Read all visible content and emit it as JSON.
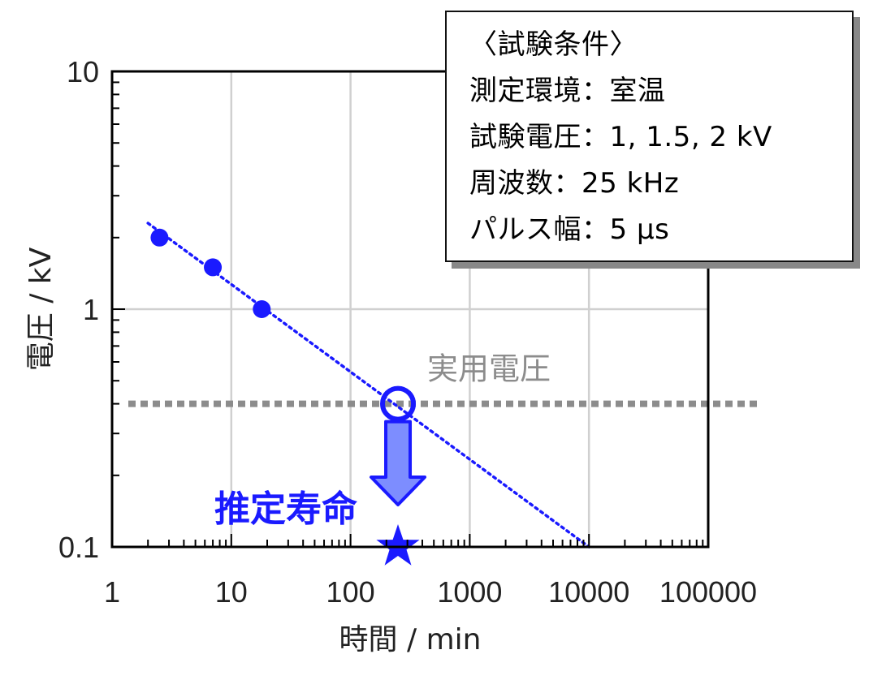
{
  "chart_data": {
    "type": "scatter",
    "xlabel": "時間 / min",
    "ylabel": "電圧 / kV",
    "x_scale": "log",
    "y_scale": "log",
    "xlim": [
      1,
      100000
    ],
    "ylim": [
      0.1,
      10
    ],
    "x_ticks": [
      "1",
      "10",
      "100",
      "1000",
      "10000",
      "100000"
    ],
    "y_ticks": [
      "0.1",
      "1",
      "10"
    ],
    "grid": true,
    "series": [
      {
        "x": [
          2.5,
          7,
          18
        ],
        "y": [
          2,
          1.5,
          1
        ],
        "color": "#1a1aff",
        "marker": "circle"
      }
    ],
    "trendline": {
      "x": [
        2,
        10000
      ],
      "y": [
        2.3,
        0.1
      ],
      "color": "#1a1aff",
      "style": "dotted"
    },
    "reference_line": {
      "label": "実用電圧",
      "y": 0.4,
      "color": "#8c8c8c",
      "style": "dashed"
    },
    "intersection_point": {
      "x": 250,
      "y": 0.4,
      "marker": "open-circle",
      "color": "#1a1aff"
    },
    "estimated_point": {
      "label": "推定寿命",
      "x": 250,
      "y": 0.1,
      "marker": "star",
      "color": "#1a1aff"
    },
    "conditions_box": {
      "lines": [
        "〈試験条件〉",
        "測定環境：室温",
        "試験電圧：1, 1.5, 2 kV",
        "周波数：25 kHz",
        "パルス幅：5 μs"
      ]
    }
  }
}
